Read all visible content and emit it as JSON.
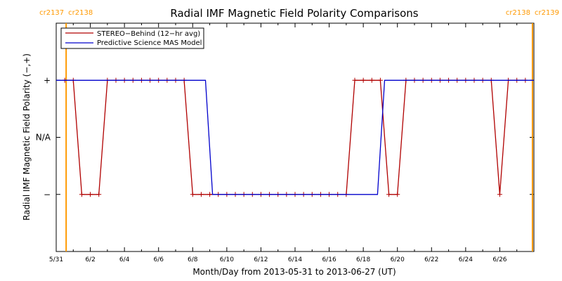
{
  "chart_data": {
    "type": "line",
    "title": "Radial IMF Magnetic Field Polarity Comparisons",
    "xlabel": "Month/Day from 2013-05-31 to 2013-06-27 (UT)",
    "ylabel": "Radial IMF Magnetic Field Polarity (−,+)",
    "x_range": [
      "2013-05-31T00:00",
      "2013-06-28T00:00"
    ],
    "y_categories": [
      "−",
      "N/A",
      "+"
    ],
    "y_category_values": [
      -1,
      0,
      1
    ],
    "ylim": [
      -2,
      2
    ],
    "x_tick_labels": [
      "5/31",
      "6/2",
      "6/4",
      "6/6",
      "6/8",
      "6/10",
      "6/12",
      "6/14",
      "6/16",
      "6/18",
      "6/20",
      "6/22",
      "6/24",
      "6/26"
    ],
    "x_tick_dates": [
      "2013-05-31",
      "2013-06-02",
      "2013-06-04",
      "2013-06-06",
      "2013-06-08",
      "2013-06-10",
      "2013-06-12",
      "2013-06-14",
      "2013-06-16",
      "2013-06-18",
      "2013-06-20",
      "2013-06-22",
      "2013-06-24",
      "2013-06-26"
    ],
    "grid": false,
    "legend_position": "top-left",
    "carrington_markers": [
      {
        "label_left": "cr2137",
        "label_right": "cr2138",
        "date": "2013-05-31T14:00"
      },
      {
        "label_left": "cr2138",
        "label_right": "cr2139",
        "date": "2013-06-27T22:00"
      }
    ],
    "series": [
      {
        "name": "STEREO−Behind (12−hr avg)",
        "color": "#b00000",
        "markers": true,
        "points": [
          [
            "2013-05-31T12:00",
            1
          ],
          [
            "2013-06-01T00:00",
            1
          ],
          [
            "2013-06-01T12:00",
            -1
          ],
          [
            "2013-06-02T00:00",
            -1
          ],
          [
            "2013-06-02T12:00",
            -1
          ],
          [
            "2013-06-03T00:00",
            1
          ],
          [
            "2013-06-03T12:00",
            1
          ],
          [
            "2013-06-04T00:00",
            1
          ],
          [
            "2013-06-04T12:00",
            1
          ],
          [
            "2013-06-05T00:00",
            1
          ],
          [
            "2013-06-05T12:00",
            1
          ],
          [
            "2013-06-06T00:00",
            1
          ],
          [
            "2013-06-06T12:00",
            1
          ],
          [
            "2013-06-07T00:00",
            1
          ],
          [
            "2013-06-07T12:00",
            1
          ],
          [
            "2013-06-08T00:00",
            -1
          ],
          [
            "2013-06-08T12:00",
            -1
          ],
          [
            "2013-06-09T00:00",
            -1
          ],
          [
            "2013-06-09T12:00",
            -1
          ],
          [
            "2013-06-10T00:00",
            -1
          ],
          [
            "2013-06-10T12:00",
            -1
          ],
          [
            "2013-06-11T00:00",
            -1
          ],
          [
            "2013-06-11T12:00",
            -1
          ],
          [
            "2013-06-12T00:00",
            -1
          ],
          [
            "2013-06-12T12:00",
            -1
          ],
          [
            "2013-06-13T00:00",
            -1
          ],
          [
            "2013-06-13T12:00",
            -1
          ],
          [
            "2013-06-14T00:00",
            -1
          ],
          [
            "2013-06-14T12:00",
            -1
          ],
          [
            "2013-06-15T00:00",
            -1
          ],
          [
            "2013-06-15T12:00",
            -1
          ],
          [
            "2013-06-16T00:00",
            -1
          ],
          [
            "2013-06-16T12:00",
            -1
          ],
          [
            "2013-06-17T00:00",
            -1
          ],
          [
            "2013-06-17T12:00",
            1
          ],
          [
            "2013-06-18T00:00",
            1
          ],
          [
            "2013-06-18T12:00",
            1
          ],
          [
            "2013-06-19T00:00",
            1
          ],
          [
            "2013-06-19T12:00",
            -1
          ],
          [
            "2013-06-20T00:00",
            -1
          ],
          [
            "2013-06-20T12:00",
            1
          ],
          [
            "2013-06-21T00:00",
            1
          ],
          [
            "2013-06-21T12:00",
            1
          ],
          [
            "2013-06-22T00:00",
            1
          ],
          [
            "2013-06-22T12:00",
            1
          ],
          [
            "2013-06-23T00:00",
            1
          ],
          [
            "2013-06-23T12:00",
            1
          ],
          [
            "2013-06-24T00:00",
            1
          ],
          [
            "2013-06-24T12:00",
            1
          ],
          [
            "2013-06-25T00:00",
            1
          ],
          [
            "2013-06-25T12:00",
            1
          ],
          [
            "2013-06-26T00:00",
            -1
          ],
          [
            "2013-06-26T12:00",
            1
          ],
          [
            "2013-06-27T00:00",
            1
          ],
          [
            "2013-06-27T12:00",
            1
          ]
        ]
      },
      {
        "name": "Predictive Science MAS Model",
        "color": "#0000cc",
        "markers": false,
        "points": [
          [
            "2013-05-31T00:00",
            1
          ],
          [
            "2013-06-08T18:00",
            1
          ],
          [
            "2013-06-09T04:00",
            -1
          ],
          [
            "2013-06-18T20:00",
            -1
          ],
          [
            "2013-06-19T06:00",
            1
          ],
          [
            "2013-06-28T00:00",
            1
          ]
        ]
      }
    ]
  }
}
